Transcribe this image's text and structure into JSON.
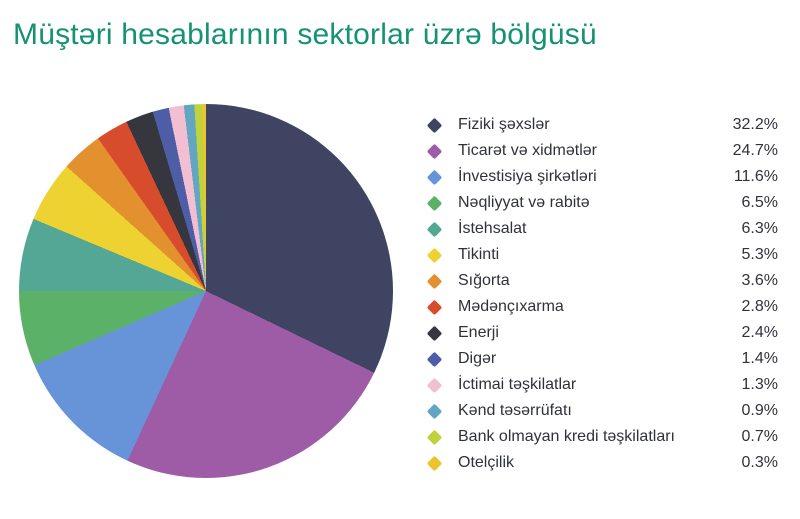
{
  "title": {
    "text": "Müştəri hesablarının sektorlar üzrə bölgüsü",
    "color": "#149271"
  },
  "chart_data": {
    "type": "pie",
    "title": "Müştəri hesablarının sektorlar üzrə bölgüsü",
    "start_angle_deg": 0,
    "direction": "clockwise",
    "legend_position": "right",
    "value_suffix": "%",
    "series": [
      {
        "label": "Fiziki şəxslər",
        "value": 32.2,
        "display": "32.2%",
        "color": "#3e4462"
      },
      {
        "label": "Ticarət və xidmətlər",
        "value": 24.7,
        "display": "24.7%",
        "color": "#9d5ca5"
      },
      {
        "label": "İnvestisiya şirkətləri",
        "value": 11.6,
        "display": "11.6%",
        "color": "#6793d8"
      },
      {
        "label": "Nəqliyyat və rabitə",
        "value": 6.5,
        "display": "6.5%",
        "color": "#5cb168"
      },
      {
        "label": "İstehsalat",
        "value": 6.3,
        "display": "6.3%",
        "color": "#55a795"
      },
      {
        "label": "Tikinti",
        "value": 5.3,
        "display": "5.3%",
        "color": "#eed232"
      },
      {
        "label": "Sığorta",
        "value": 3.6,
        "display": "3.6%",
        "color": "#e2912e"
      },
      {
        "label": "Mədənçıxarma",
        "value": 2.8,
        "display": "2.8%",
        "color": "#d84c2e"
      },
      {
        "label": "Enerji",
        "value": 2.4,
        "display": "2.4%",
        "color": "#35363e"
      },
      {
        "label": "Digər",
        "value": 1.4,
        "display": "1.4%",
        "color": "#4e5ea6"
      },
      {
        "label": "İctimai təşkilatlar",
        "value": 1.3,
        "display": "1.3%",
        "color": "#f2bed2"
      },
      {
        "label": "Kənd təsərrüfatı",
        "value": 0.9,
        "display": "0.9%",
        "color": "#63a6c1"
      },
      {
        "label": "Bank olmayan kredi təşkilatları",
        "value": 0.7,
        "display": "0.7%",
        "color": "#c0d33c"
      },
      {
        "label": "Otelçilik",
        "value": 0.3,
        "display": "0.3%",
        "color": "#eec42c"
      }
    ]
  }
}
